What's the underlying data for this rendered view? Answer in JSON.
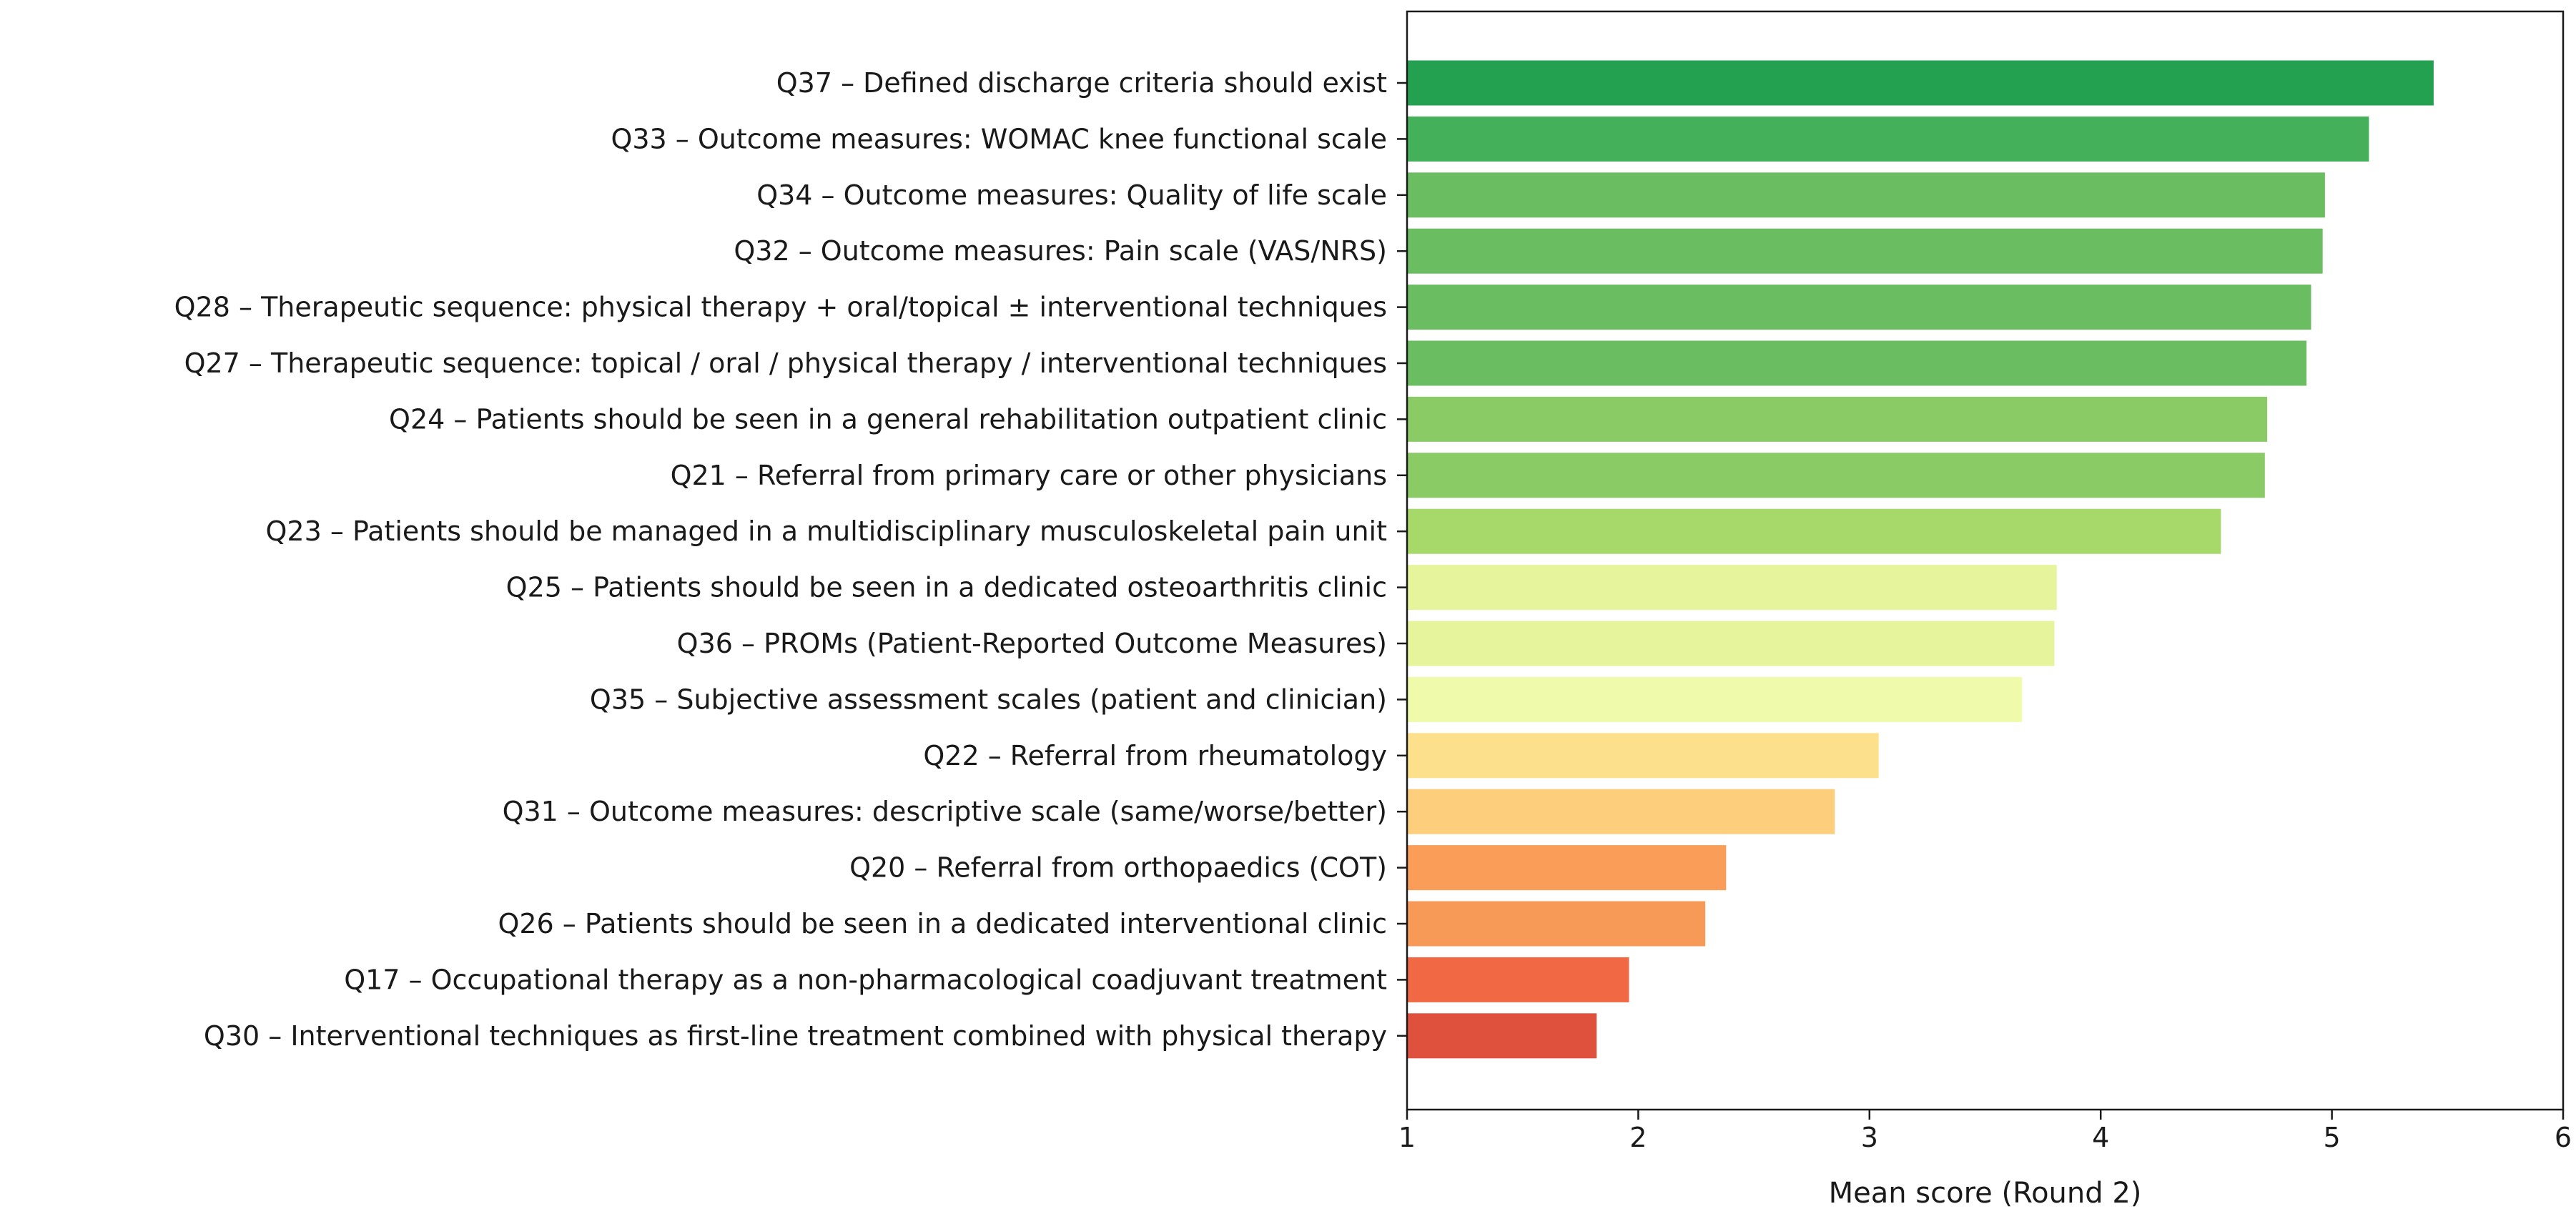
{
  "chart_data": {
    "type": "bar",
    "orientation": "horizontal",
    "title": "",
    "xlabel": "Mean score (Round 2)",
    "ylabel": "",
    "xlim": [
      1,
      6
    ],
    "xticks": [
      1,
      2,
      3,
      4,
      5,
      6
    ],
    "grid": false,
    "categories": [
      "Q37 – Defined discharge criteria should exist",
      "Q33 – Outcome measures: WOMAC knee functional scale",
      "Q34 – Outcome measures: Quality of life scale",
      "Q32 – Outcome measures: Pain scale (VAS/NRS)",
      "Q28 – Therapeutic sequence: physical therapy + oral/topical ± interventional techniques",
      "Q27 – Therapeutic sequence: topical / oral / physical therapy / interventional techniques",
      "Q24 – Patients should be seen in a general rehabilitation outpatient clinic",
      "Q21 – Referral from primary care or other physicians",
      "Q23 – Patients should be managed in a multidisciplinary musculoskeletal pain unit",
      "Q25 – Patients should be seen in a dedicated osteoarthritis clinic",
      "Q36 – PROMs (Patient-Reported Outcome Measures)",
      "Q35 – Subjective assessment scales (patient and clinician)",
      "Q22 – Referral from rheumatology",
      "Q31 – Outcome measures: descriptive scale (same/worse/better)",
      "Q20 – Referral from orthopaedics (COT)",
      "Q26 – Patients should be seen in a dedicated interventional clinic",
      "Q17 – Occupational therapy as a non-pharmacological coadjuvant treatment",
      "Q30 – Interventional techniques as first-line treatment combined with physical therapy"
    ],
    "values": [
      5.44,
      5.16,
      4.97,
      4.96,
      4.91,
      4.89,
      4.72,
      4.71,
      4.52,
      3.81,
      3.8,
      3.66,
      3.04,
      2.85,
      2.38,
      2.29,
      1.96,
      1.82
    ],
    "colors": [
      "#23a151",
      "#44b05a",
      "#6abd61",
      "#6abd61",
      "#6abd61",
      "#6abd61",
      "#8acb66",
      "#8acb66",
      "#a6d96a",
      "#e6f59b",
      "#e6f59b",
      "#effaab",
      "#fde08b",
      "#fdce7c",
      "#f99d58",
      "#f89a57",
      "#f06844",
      "#e0513d"
    ]
  }
}
